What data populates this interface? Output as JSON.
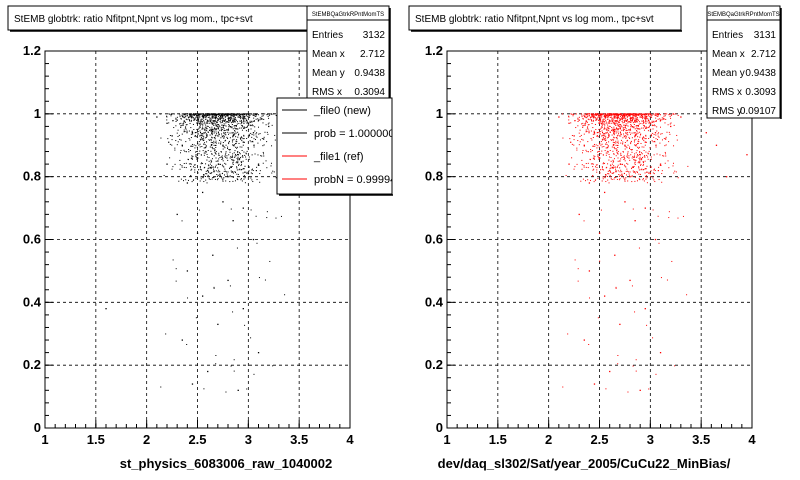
{
  "chart_data": [
    {
      "type": "scatter",
      "title": "StEMB globtrk: ratio Nfitpnt,Npnt vs log mom., tpc+svt",
      "xlabel": "st_physics_6083006_raw_1040002",
      "xlim": [
        1,
        4
      ],
      "ylim": [
        0,
        1.2
      ],
      "xticks": [
        "1",
        "1.5",
        "2",
        "2.5",
        "3",
        "3.5",
        "4"
      ],
      "yticks": [
        "0",
        "0.2",
        "0.4",
        "0.6",
        "0.8",
        "1",
        "1.2"
      ],
      "grid": true,
      "marker_color": "#000000",
      "stats": {
        "name": "StEMBQaGtrkRPntMomTS",
        "rows": [
          {
            "label": "Entries",
            "value": "3132"
          },
          {
            "label": "Mean x",
            "value": "2.712"
          },
          {
            "label": "Mean y",
            "value": "0.9438"
          },
          {
            "label": "RMS x",
            "value": "0.3094"
          }
        ]
      },
      "legend": {
        "placement": "top-right",
        "entries": [
          {
            "label": "_file0 (new)",
            "color": "#000000"
          },
          {
            "label": "prob = 1.000000",
            "color": "#000000"
          },
          {
            "label": "_file1 (ref)",
            "color": "#ff0000"
          },
          {
            "label": "probN = 0.999943",
            "color": "#ff0000"
          }
        ]
      },
      "points": [
        [
          2.1,
          0.99
        ],
        [
          2.2,
          0.97
        ],
        [
          2.3,
          0.98
        ],
        [
          2.4,
          1.0
        ],
        [
          2.5,
          0.99
        ],
        [
          2.6,
          1.0
        ],
        [
          2.7,
          0.98
        ],
        [
          2.8,
          1.0
        ],
        [
          2.9,
          0.99
        ],
        [
          3.0,
          0.97
        ],
        [
          3.1,
          0.98
        ],
        [
          3.2,
          0.96
        ],
        [
          3.3,
          0.99
        ],
        [
          2.45,
          0.94
        ],
        [
          2.55,
          0.92
        ],
        [
          2.65,
          0.95
        ],
        [
          2.75,
          0.9
        ],
        [
          2.85,
          0.93
        ],
        [
          2.95,
          0.91
        ],
        [
          3.05,
          0.94
        ],
        [
          2.35,
          0.9
        ],
        [
          2.25,
          0.93
        ],
        [
          3.15,
          0.92
        ],
        [
          2.5,
          0.86
        ],
        [
          2.7,
          0.85
        ],
        [
          2.9,
          0.87
        ],
        [
          3.1,
          0.84
        ],
        [
          2.6,
          0.82
        ],
        [
          2.8,
          0.8
        ],
        [
          3.0,
          0.81
        ],
        [
          2.4,
          0.78
        ],
        [
          2.2,
          0.84
        ],
        [
          2.55,
          0.75
        ],
        [
          2.75,
          0.72
        ],
        [
          2.95,
          0.7
        ],
        [
          2.3,
          0.68
        ],
        [
          2.85,
          0.66
        ],
        [
          2.5,
          0.62
        ],
        [
          3.05,
          0.6
        ],
        [
          2.65,
          0.55
        ],
        [
          2.4,
          0.5
        ],
        [
          2.8,
          0.47
        ],
        [
          2.55,
          0.42
        ],
        [
          2.95,
          0.38
        ],
        [
          2.7,
          0.33
        ],
        [
          2.35,
          0.28
        ],
        [
          3.1,
          0.24
        ],
        [
          2.6,
          0.18
        ],
        [
          2.45,
          0.14
        ],
        [
          2.9,
          0.12
        ],
        [
          1.6,
          0.38
        ],
        [
          3.6,
          0.95
        ],
        [
          3.45,
          0.92
        ],
        [
          3.3,
          0.88
        ]
      ]
    },
    {
      "type": "scatter",
      "title": "StEMB globtrk: ratio Nfitpnt,Npnt vs log mom., tpc+svt",
      "xlabel": "dev/daq_sl302/Sat/year_2005/CuCu22_MinBias/",
      "xlim": [
        1,
        4
      ],
      "ylim": [
        0,
        1.2
      ],
      "xticks": [
        "1",
        "1.5",
        "2",
        "2.5",
        "3",
        "3.5",
        "4"
      ],
      "yticks": [
        "0",
        "0.2",
        "0.4",
        "0.6",
        "0.8",
        "1",
        "1.2"
      ],
      "grid": true,
      "marker_color": "#ff0000",
      "stats": {
        "name": "StEMBQaGtrkRPntMomTS",
        "rows": [
          {
            "label": "Entries",
            "value": "3131"
          },
          {
            "label": "Mean x",
            "value": "2.712"
          },
          {
            "label": "Mean y",
            "value": "0.9438"
          },
          {
            "label": "RMS x",
            "value": "0.3093"
          },
          {
            "label": "RMS y",
            "value": "0.09107"
          }
        ]
      },
      "points": [
        [
          2.1,
          0.99
        ],
        [
          2.2,
          0.97
        ],
        [
          2.3,
          0.98
        ],
        [
          2.4,
          1.0
        ],
        [
          2.5,
          0.99
        ],
        [
          2.6,
          1.0
        ],
        [
          2.7,
          0.98
        ],
        [
          2.8,
          1.0
        ],
        [
          2.9,
          0.99
        ],
        [
          3.0,
          0.97
        ],
        [
          3.1,
          0.98
        ],
        [
          3.2,
          0.96
        ],
        [
          3.3,
          0.99
        ],
        [
          2.45,
          0.94
        ],
        [
          2.55,
          0.92
        ],
        [
          2.65,
          0.95
        ],
        [
          2.75,
          0.9
        ],
        [
          2.85,
          0.93
        ],
        [
          2.95,
          0.91
        ],
        [
          3.05,
          0.94
        ],
        [
          2.35,
          0.9
        ],
        [
          2.25,
          0.93
        ],
        [
          3.15,
          0.92
        ],
        [
          2.5,
          0.86
        ],
        [
          2.7,
          0.85
        ],
        [
          2.9,
          0.87
        ],
        [
          3.1,
          0.84
        ],
        [
          2.6,
          0.82
        ],
        [
          2.8,
          0.8
        ],
        [
          3.0,
          0.81
        ],
        [
          2.4,
          0.78
        ],
        [
          2.2,
          0.84
        ],
        [
          2.55,
          0.75
        ],
        [
          2.75,
          0.72
        ],
        [
          2.95,
          0.7
        ],
        [
          2.3,
          0.68
        ],
        [
          2.85,
          0.66
        ],
        [
          2.5,
          0.62
        ],
        [
          3.05,
          0.6
        ],
        [
          2.65,
          0.55
        ],
        [
          2.4,
          0.5
        ],
        [
          2.8,
          0.47
        ],
        [
          2.55,
          0.42
        ],
        [
          2.95,
          0.38
        ],
        [
          2.7,
          0.33
        ],
        [
          2.35,
          0.28
        ],
        [
          3.1,
          0.24
        ],
        [
          2.6,
          0.18
        ],
        [
          2.45,
          0.14
        ],
        [
          2.9,
          0.12
        ],
        [
          3.65,
          0.9
        ],
        [
          3.95,
          0.87
        ],
        [
          3.55,
          0.94
        ],
        [
          3.75,
          0.8
        ]
      ]
    }
  ]
}
